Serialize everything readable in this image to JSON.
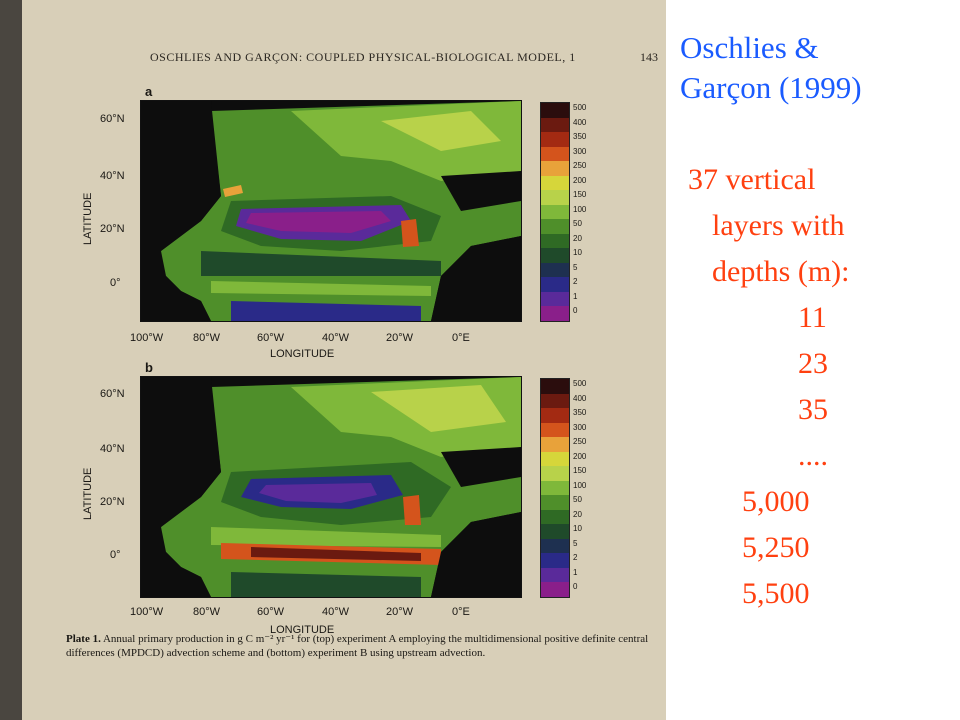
{
  "paper": {
    "running_head": "OSCHLIES AND GARÇON: COUPLED PHYSICAL-BIOLOGICAL MODEL, 1",
    "page_number": "143",
    "panels": [
      {
        "letter": "a",
        "y_title": "LATITUDE",
        "x_title": "LONGITUDE",
        "y_ticks": [
          "60°N",
          "40°N",
          "20°N",
          "0°"
        ],
        "x_ticks": [
          "100°W",
          "80°W",
          "60°W",
          "40°W",
          "20°W",
          "0°E"
        ]
      },
      {
        "letter": "b",
        "y_title": "LATITUDE",
        "x_title": "LONGITUDE",
        "y_ticks": [
          "60°N",
          "40°N",
          "20°N",
          "0°"
        ],
        "x_ticks": [
          "100°W",
          "80°W",
          "60°W",
          "40°W",
          "20°W",
          "0°E"
        ]
      }
    ],
    "colorbar_labels": [
      "500",
      "400",
      "350",
      "300",
      "250",
      "200",
      "150",
      "100",
      "50",
      "20",
      "10",
      "5",
      "2",
      "1",
      "0"
    ],
    "colorbar_colors": [
      "#2b0d0d",
      "#6b1a10",
      "#a32a12",
      "#d4541c",
      "#e8a23a",
      "#d6d63a",
      "#b8d24a",
      "#7fb83a",
      "#4f8f2a",
      "#2f6a24",
      "#1f4a2a",
      "#1e3050",
      "#2a2a88",
      "#5a2a9a",
      "#8a1f8a"
    ],
    "caption_label": "Plate 1.",
    "caption_text": "Annual primary production in g C m⁻² yr⁻¹ for (top) experiment A employing the multidimensional positive definite central differences (MPDCD) advection scheme and (bottom) experiment B using upstream advection."
  },
  "slide": {
    "title_lines": [
      "Oschlies &",
      "Garçon (1999)"
    ],
    "body_lines": [
      "37 vertical",
      "layers with",
      "depths (m):",
      "11",
      "23",
      "35",
      "....",
      "5,000",
      "5,250",
      "5,500"
    ],
    "title_color": "#1a5bff",
    "body_color": "#ff4010"
  }
}
